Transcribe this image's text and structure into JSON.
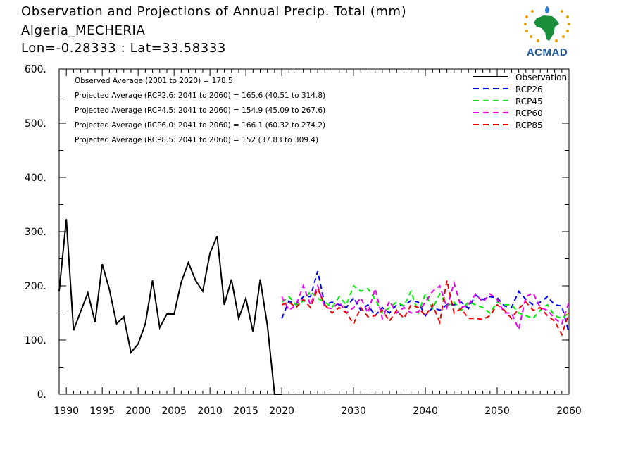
{
  "header": {
    "title": "Observation and Projections of Annual Precip. Total (mm)",
    "station": "Algeria_MECHERIA",
    "coords": "Lon=-0.28333 : Lat=33.58333"
  },
  "logo": {
    "text": "ACMAD"
  },
  "annotations": [
    "Observed Average (2001 to 2020) = 178.5",
    "Projected Average (RCP2.6: 2041 to 2060) = 165.6 (40.51 to 314.8)",
    "Projected Average (RCP4.5: 2041 to 2060) = 154.9 (45.09 to 267.6)",
    "Projected Average (RCP6.0: 2041 to 2060) = 166.1 (60.32 to 274.2)",
    "Projected Average (RCP8.5: 2041 to 2060) = 152 (37.83 to 309.4)"
  ],
  "chart_data": {
    "type": "line",
    "title": "Observation and Projections of Annual Precip. Total (mm)",
    "xlim": [
      1989,
      2060
    ],
    "ylim": [
      0,
      600
    ],
    "x_ticks": [
      1990,
      1995,
      2000,
      2005,
      2010,
      2015,
      2020,
      2030,
      2040,
      2050,
      2060
    ],
    "y_ticks": [
      0,
      100,
      200,
      300,
      400,
      500,
      600
    ],
    "y_tick_labels": [
      "0.",
      "100.",
      "200.",
      "300.",
      "400.",
      "500.",
      "600."
    ],
    "legend_position": "top-right",
    "series": [
      {
        "name": "Observation",
        "color": "#000000",
        "dash": "solid",
        "x": [
          1989,
          1990,
          1991,
          1992,
          1993,
          1994,
          1995,
          1996,
          1997,
          1998,
          1999,
          2000,
          2001,
          2002,
          2003,
          2004,
          2005,
          2006,
          2007,
          2008,
          2009,
          2010,
          2011,
          2012,
          2013,
          2014,
          2015,
          2016,
          2017,
          2018,
          2019,
          2020
        ],
        "values": [
          190,
          323,
          118,
          153,
          187,
          133,
          240,
          193,
          130,
          143,
          77,
          93,
          130,
          210,
          123,
          148,
          148,
          207,
          243,
          210,
          190,
          260,
          292,
          165,
          212,
          140,
          177,
          115,
          212,
          127,
          0,
          0
        ]
      },
      {
        "name": "RCP26",
        "color": "#0000ee",
        "dash": "dashed",
        "x": [
          2020,
          2021,
          2022,
          2023,
          2024,
          2025,
          2026,
          2027,
          2028,
          2029,
          2030,
          2031,
          2032,
          2033,
          2034,
          2035,
          2036,
          2037,
          2038,
          2039,
          2040,
          2041,
          2042,
          2043,
          2044,
          2045,
          2046,
          2047,
          2048,
          2049,
          2050,
          2051,
          2052,
          2053,
          2054,
          2055,
          2056,
          2057,
          2058,
          2059,
          2060
        ],
        "values": [
          140,
          172,
          165,
          180,
          180,
          227,
          165,
          170,
          165,
          160,
          178,
          155,
          165,
          145,
          160,
          150,
          165,
          163,
          173,
          170,
          145,
          160,
          155,
          165,
          165,
          170,
          158,
          183,
          175,
          180,
          178,
          163,
          160,
          190,
          175,
          165,
          170,
          180,
          165,
          163,
          113
        ]
      },
      {
        "name": "RCP45",
        "color": "#00ee00",
        "dash": "dashed",
        "x": [
          2020,
          2021,
          2022,
          2023,
          2024,
          2025,
          2026,
          2027,
          2028,
          2029,
          2030,
          2031,
          2032,
          2033,
          2034,
          2035,
          2036,
          2037,
          2038,
          2039,
          2040,
          2041,
          2042,
          2043,
          2044,
          2045,
          2046,
          2047,
          2048,
          2049,
          2050,
          2051,
          2052,
          2053,
          2054,
          2055,
          2056,
          2057,
          2058,
          2059,
          2060
        ],
        "values": [
          170,
          180,
          165,
          172,
          190,
          177,
          170,
          160,
          180,
          165,
          200,
          190,
          195,
          175,
          150,
          160,
          170,
          163,
          190,
          150,
          185,
          158,
          185,
          163,
          170,
          155,
          170,
          165,
          160,
          150,
          170,
          165,
          165,
          150,
          145,
          140,
          155,
          165,
          145,
          140,
          150
        ]
      },
      {
        "name": "RCP60",
        "color": "#ee00ee",
        "dash": "dashed",
        "x": [
          2020,
          2021,
          2022,
          2023,
          2024,
          2025,
          2026,
          2027,
          2028,
          2029,
          2030,
          2031,
          2032,
          2033,
          2034,
          2035,
          2036,
          2037,
          2038,
          2039,
          2040,
          2041,
          2042,
          2043,
          2044,
          2045,
          2046,
          2047,
          2048,
          2049,
          2050,
          2051,
          2052,
          2053,
          2054,
          2055,
          2056,
          2057,
          2058,
          2059,
          2060
        ],
        "values": [
          180,
          155,
          165,
          200,
          165,
          200,
          160,
          158,
          170,
          150,
          160,
          178,
          150,
          195,
          140,
          172,
          150,
          160,
          150,
          152,
          170,
          190,
          200,
          160,
          205,
          160,
          165,
          185,
          170,
          185,
          175,
          150,
          150,
          120,
          180,
          187,
          160,
          155,
          140,
          130,
          170
        ]
      },
      {
        "name": "RCP85",
        "color": "#ee0000",
        "dash": "dashed",
        "x": [
          2020,
          2021,
          2022,
          2023,
          2024,
          2025,
          2026,
          2027,
          2028,
          2029,
          2030,
          2031,
          2032,
          2033,
          2034,
          2035,
          2036,
          2037,
          2038,
          2039,
          2040,
          2041,
          2042,
          2043,
          2044,
          2045,
          2046,
          2047,
          2048,
          2049,
          2050,
          2051,
          2052,
          2053,
          2054,
          2055,
          2056,
          2057,
          2058,
          2059,
          2060
        ],
        "values": [
          165,
          170,
          160,
          175,
          160,
          195,
          165,
          150,
          160,
          150,
          130,
          160,
          143,
          145,
          155,
          135,
          155,
          140,
          165,
          160,
          145,
          165,
          133,
          210,
          150,
          158,
          140,
          140,
          138,
          145,
          165,
          155,
          140,
          158,
          170,
          155,
          160,
          145,
          135,
          110,
          150
        ]
      }
    ]
  }
}
